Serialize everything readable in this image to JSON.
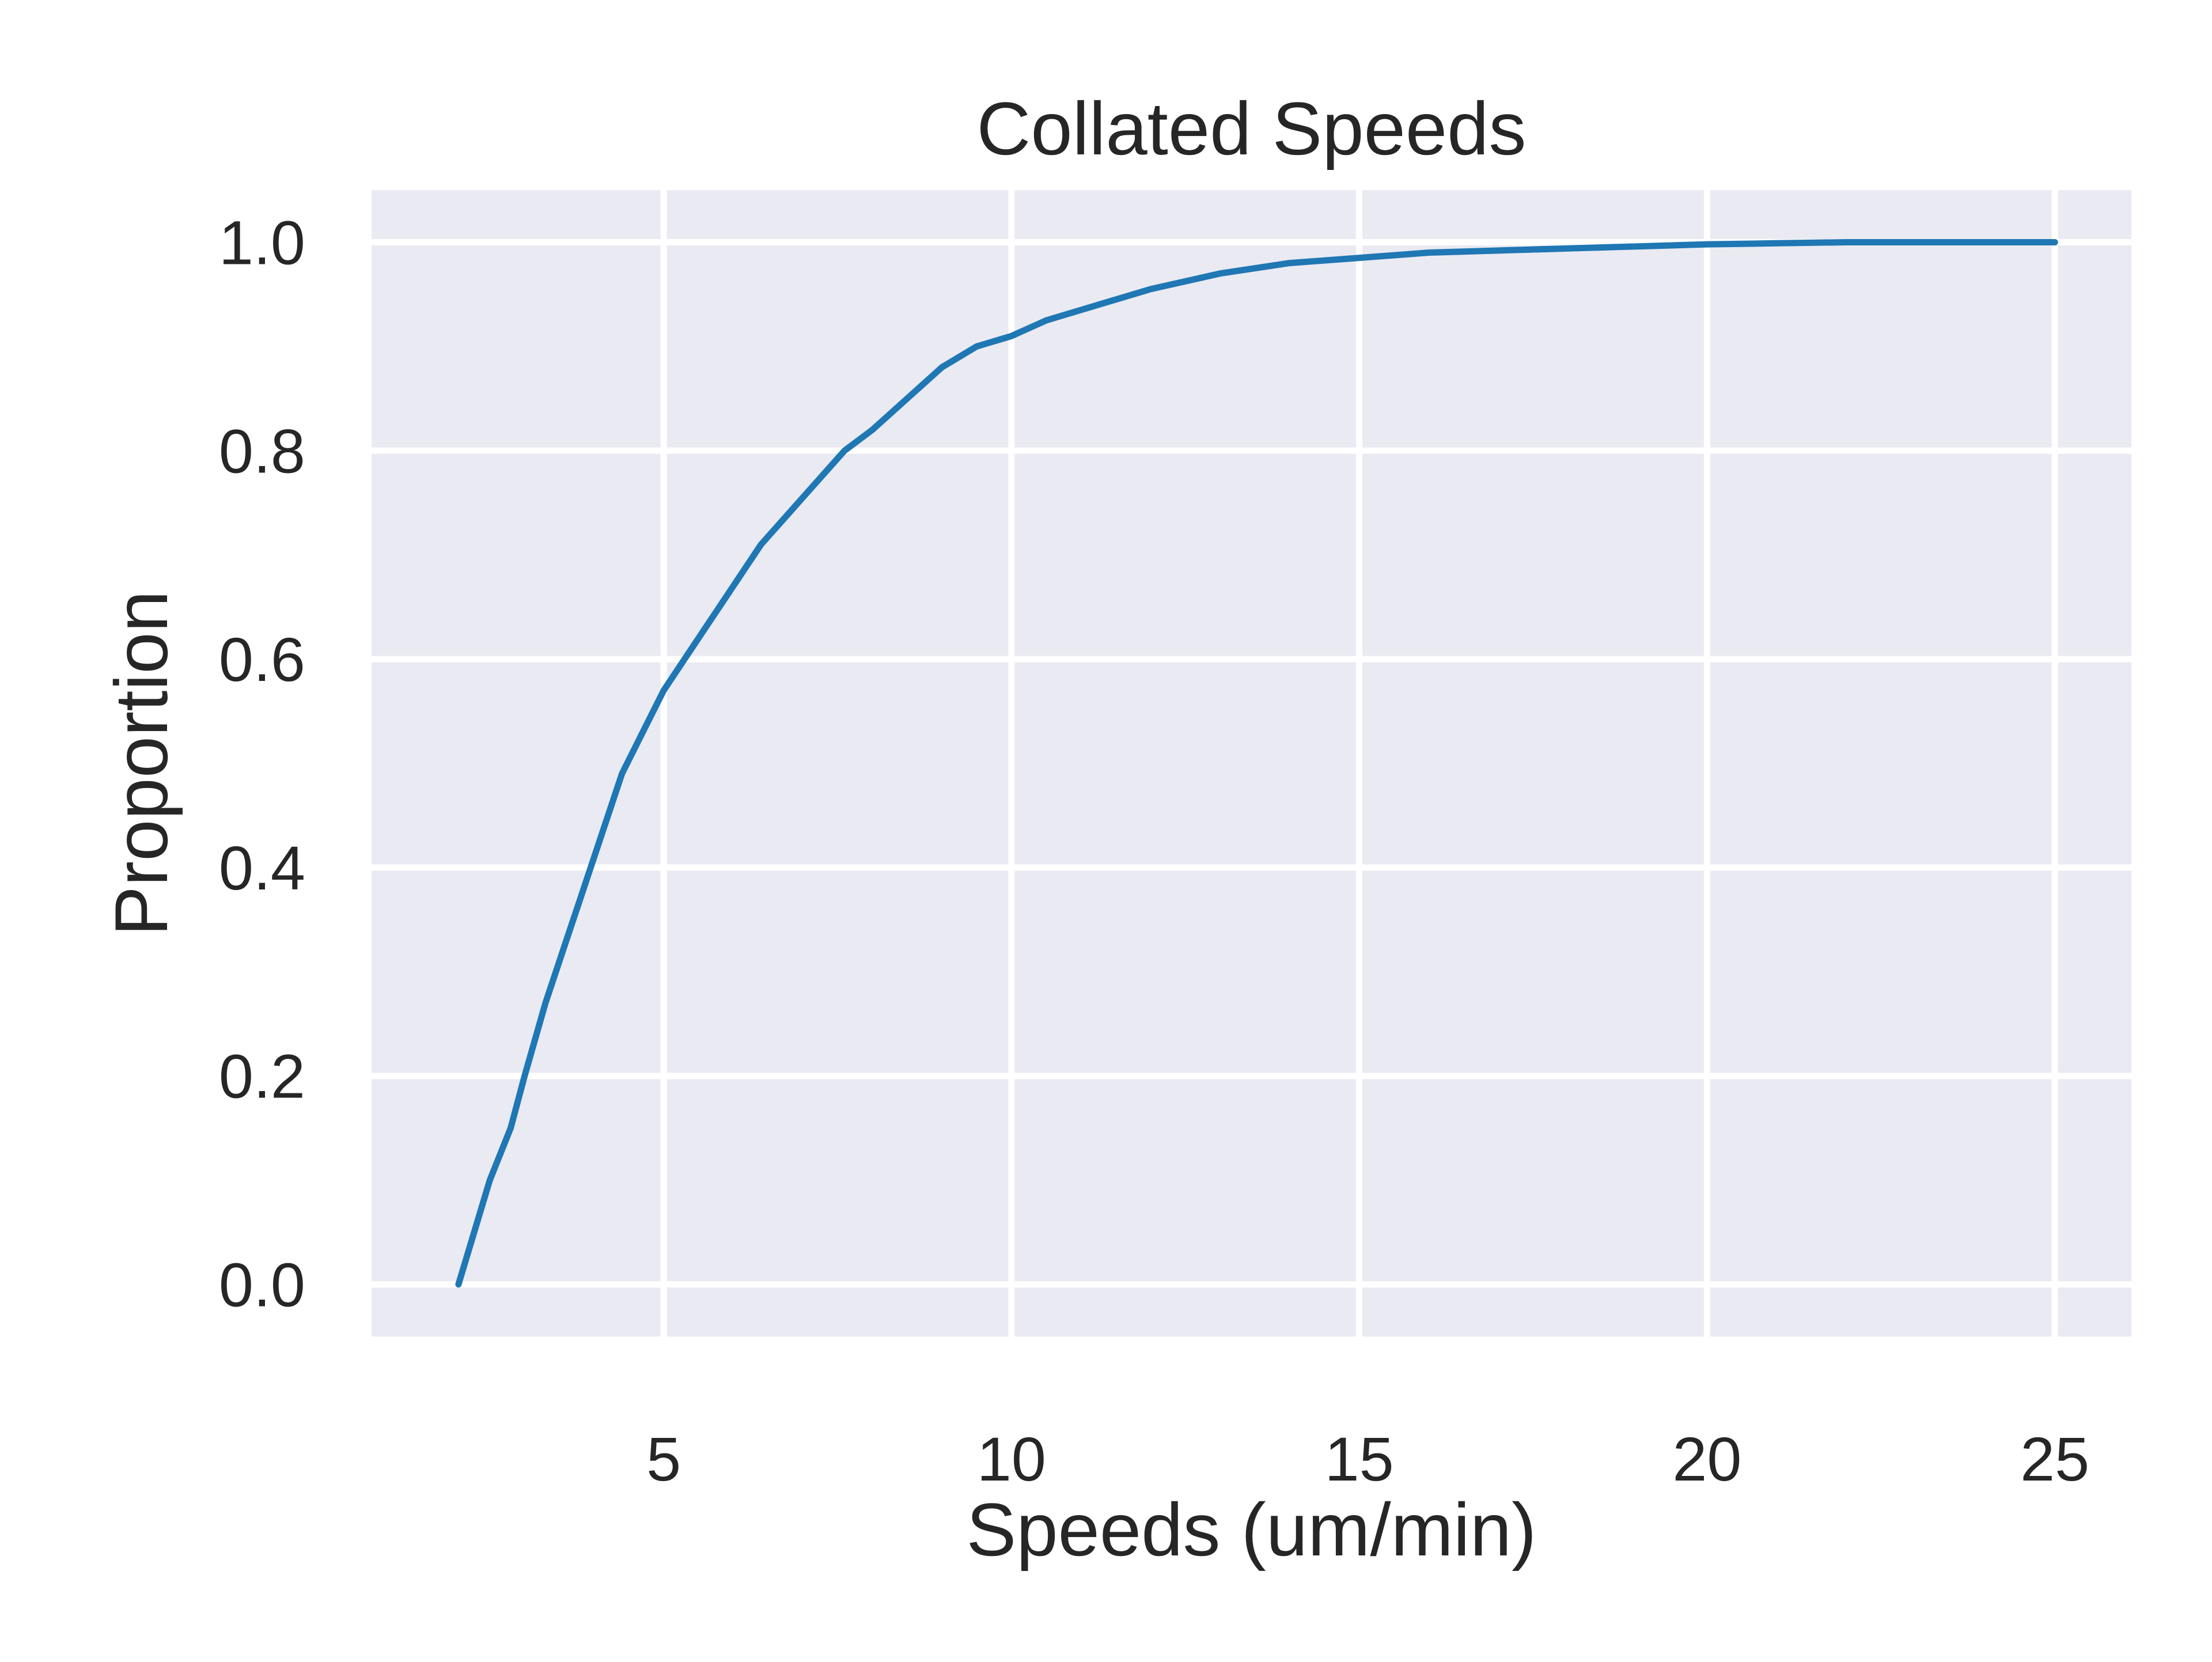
{
  "chart_data": {
    "type": "line",
    "title": "Collated Speeds",
    "xlabel": "Speeds (um/min)",
    "ylabel": "Proportion",
    "xlim": [
      0.8,
      26.1
    ],
    "ylim": [
      -0.05,
      1.05
    ],
    "xticks": [
      5,
      10,
      15,
      20,
      25
    ],
    "yticks": [
      0.0,
      0.2,
      0.4,
      0.6,
      0.8,
      1.0
    ],
    "xtick_labels": [
      "5",
      "10",
      "15",
      "20",
      "25"
    ],
    "ytick_labels": [
      "0.0",
      "0.2",
      "0.4",
      "0.6",
      "0.8",
      "1.0"
    ],
    "grid": true,
    "series": [
      {
        "color": "#1f77b4",
        "x": [
          2.05,
          2.5,
          2.8,
          3.0,
          3.3,
          3.6,
          3.8,
          4.1,
          4.4,
          4.7,
          5.0,
          5.3,
          5.6,
          6.0,
          6.4,
          6.8,
          7.2,
          7.6,
          8.0,
          8.5,
          9.0,
          9.5,
          10.0,
          10.5,
          11.0,
          12.0,
          13.0,
          14.0,
          15.0,
          16.0,
          17.0,
          18.0,
          19.0,
          20.0,
          21.0,
          22.0,
          23.0,
          25.0
        ],
        "y": [
          0.0,
          0.1,
          0.15,
          0.2,
          0.27,
          0.33,
          0.37,
          0.43,
          0.49,
          0.53,
          0.57,
          0.6,
          0.63,
          0.67,
          0.71,
          0.74,
          0.77,
          0.8,
          0.82,
          0.85,
          0.88,
          0.9,
          0.91,
          0.925,
          0.935,
          0.955,
          0.97,
          0.98,
          0.985,
          0.99,
          0.992,
          0.994,
          0.996,
          0.998,
          0.999,
          1.0,
          1.0,
          1.0
        ]
      }
    ]
  },
  "colors": {
    "plot_background": "#eaeaf2",
    "grid": "#ffffff",
    "line": "#1f77b4",
    "text": "#262626"
  }
}
